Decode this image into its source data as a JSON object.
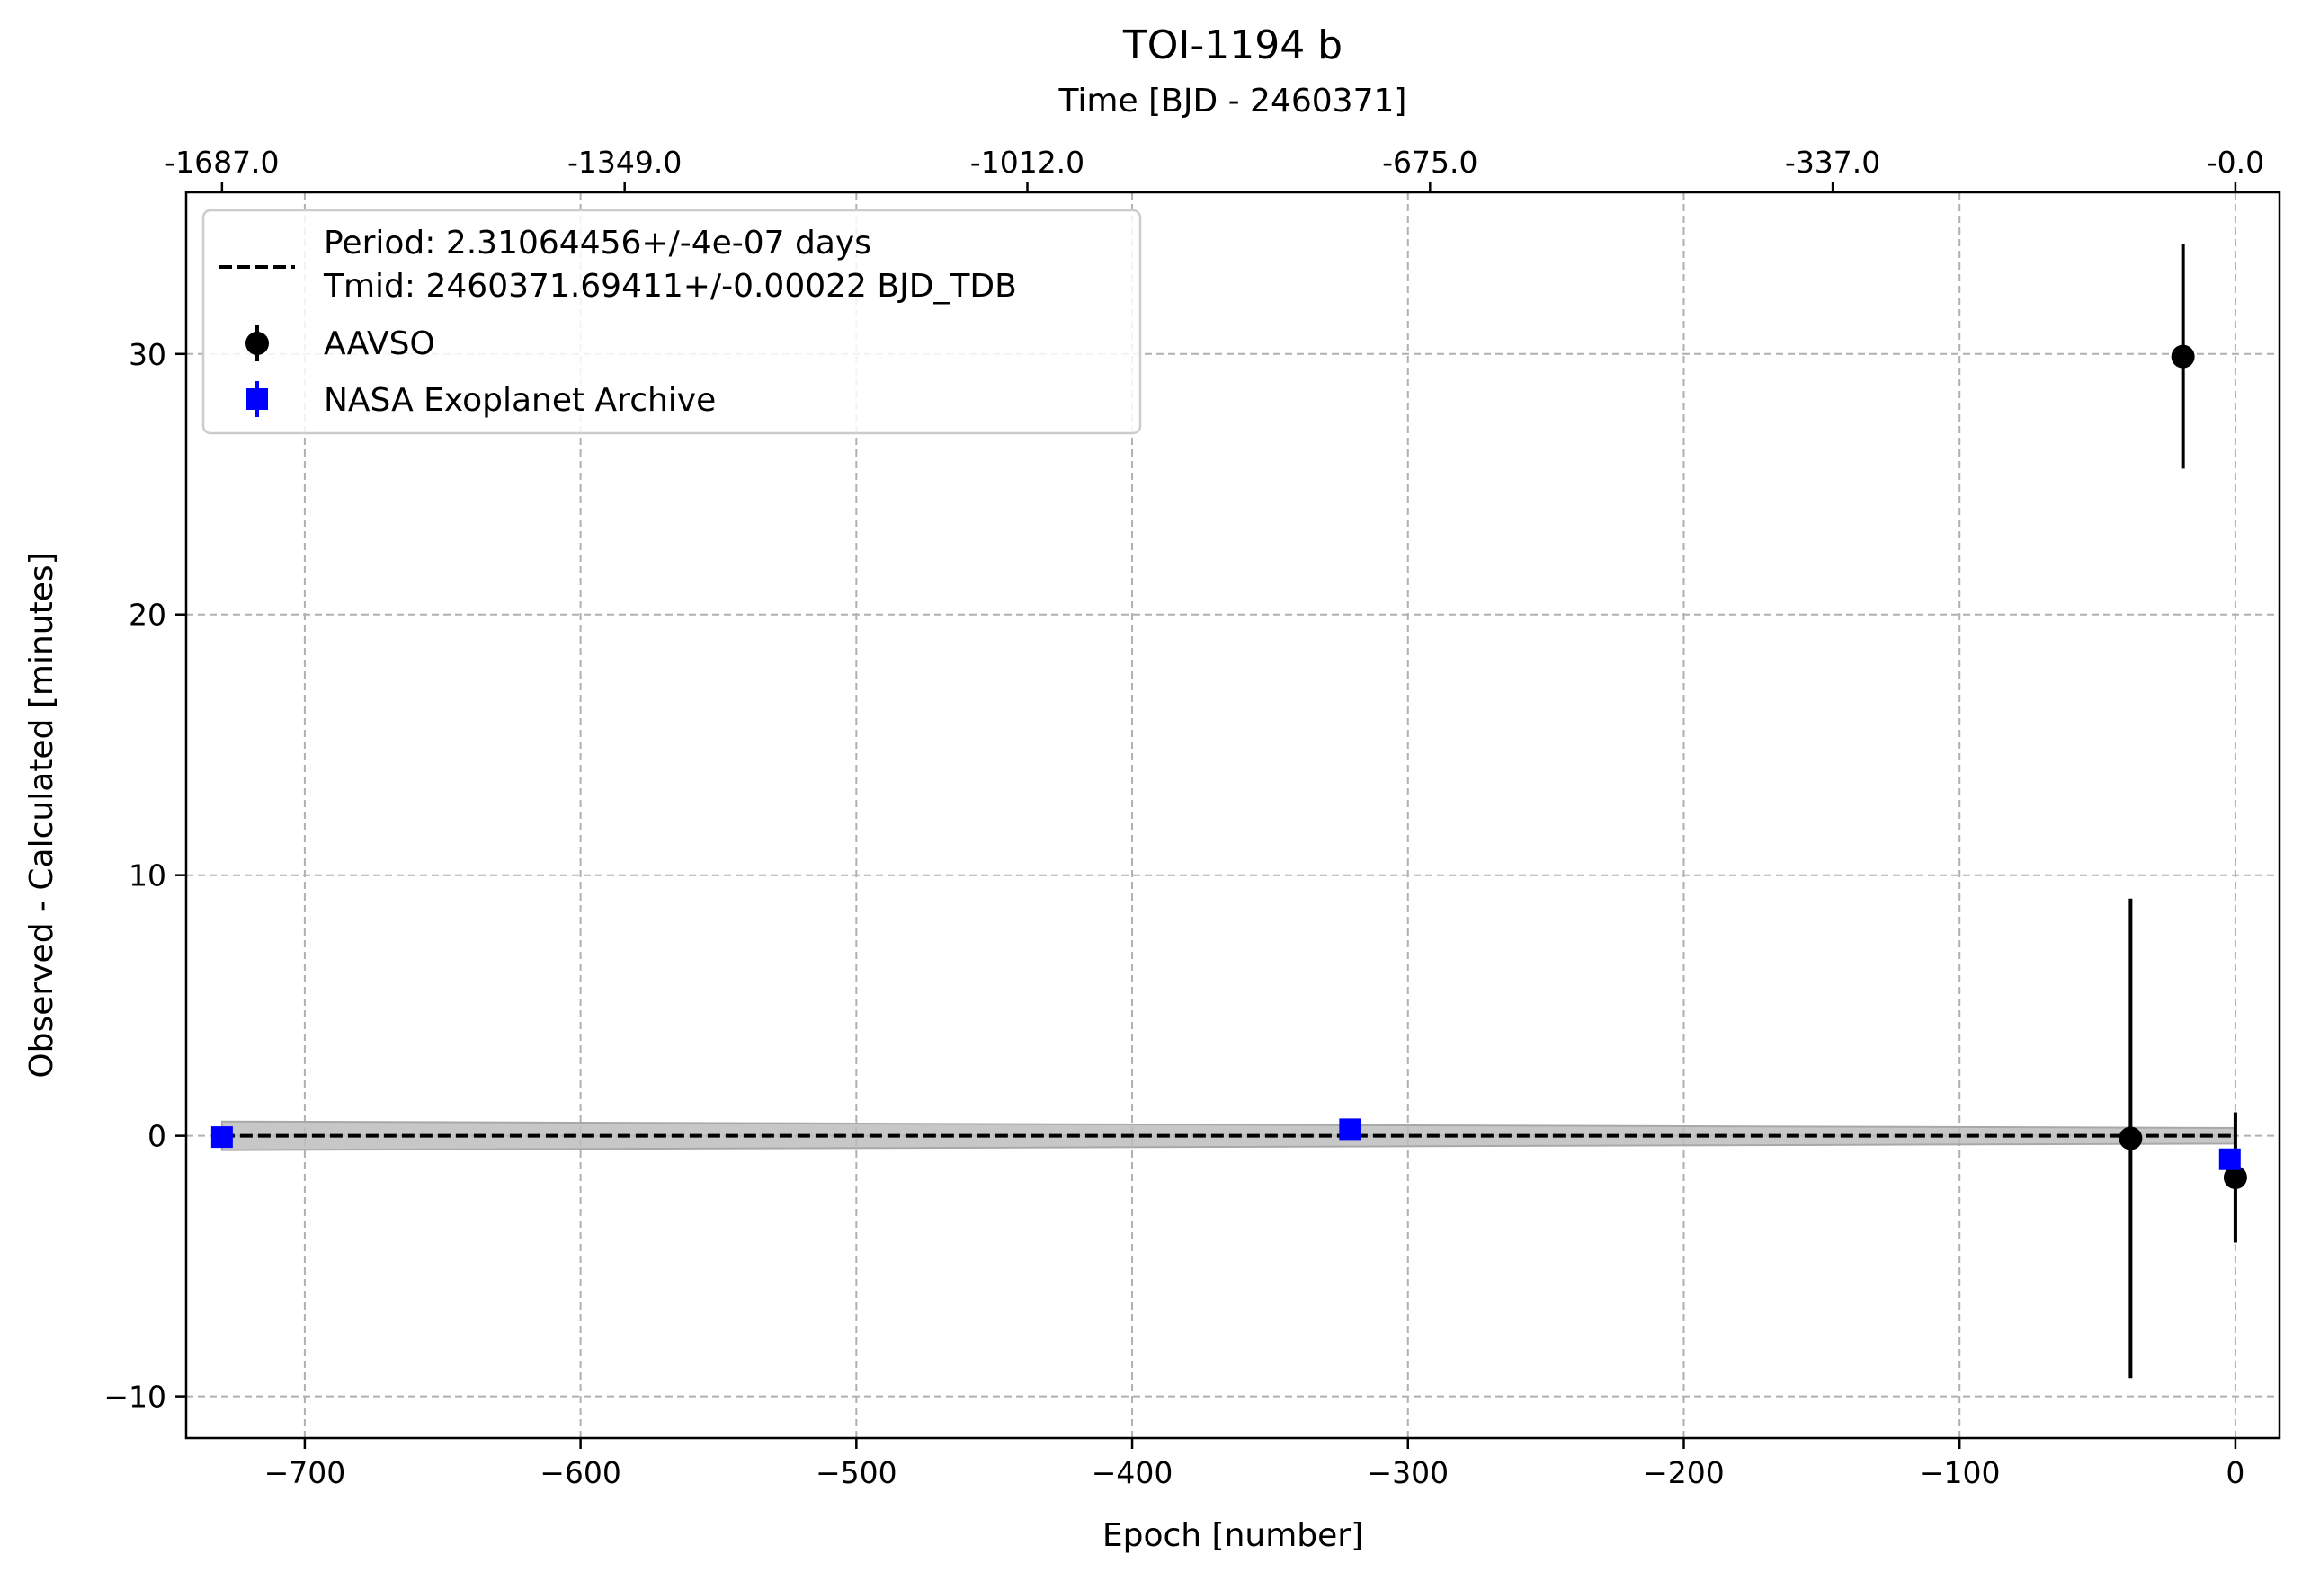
{
  "chart_data": {
    "type": "scatter",
    "title": "TOI-1194 b",
    "xlabel": "Epoch [number]",
    "ylabel": "Observed - Calculated [minutes]",
    "top_xlabel": "Time [BJD - 2460371]",
    "xlim": [
      -743,
      16
    ],
    "ylim": [
      -11.6,
      36.2
    ],
    "x_ticks": [
      -700,
      -600,
      -500,
      -400,
      -300,
      -200,
      -100,
      0
    ],
    "x_tick_labels": [
      "−700",
      "−600",
      "−500",
      "−400",
      "−300",
      "−200",
      "−100",
      "0"
    ],
    "y_ticks": [
      -10,
      0,
      10,
      20,
      30
    ],
    "y_tick_labels": [
      "−10",
      "0",
      "10",
      "20",
      "30"
    ],
    "top_x_ticks": [
      -730,
      -584,
      -438,
      -292,
      -146,
      0
    ],
    "top_x_tick_labels": [
      "-1687.0",
      "-1349.0",
      "-1012.0",
      "-675.0",
      "-337.0",
      "-0.0"
    ],
    "grid": true,
    "legend_position": "top-left",
    "fit": {
      "label_line1": "Period: 2.31064456+/-4e-07 days",
      "label_line2": "Tmid: 2460371.69411+/-0.00022 BJD_TDB",
      "x_range": [
        -730,
        0
      ],
      "value": 0,
      "band_left": [
        -0.55,
        0.55
      ],
      "band_right": [
        -0.3,
        0.3
      ],
      "color": "#000000",
      "band_color": "#bdbdbd"
    },
    "series": [
      {
        "name": "AAVSO",
        "marker": "circle",
        "color": "#000000",
        "points": [
          {
            "x": -19,
            "y": 29.9,
            "err": 4.3
          },
          {
            "x": -38,
            "y": -0.1,
            "err": 9.2
          },
          {
            "x": 0,
            "y": -1.6,
            "err": 2.5
          }
        ]
      },
      {
        "name": "NASA Exoplanet Archive",
        "marker": "square",
        "color": "#0000ff",
        "points": [
          {
            "x": -730,
            "y": -0.05,
            "err": 0.3
          },
          {
            "x": -321,
            "y": 0.25,
            "err": 0.2
          },
          {
            "x": -2,
            "y": -0.9,
            "err": 0.25
          }
        ]
      }
    ]
  }
}
